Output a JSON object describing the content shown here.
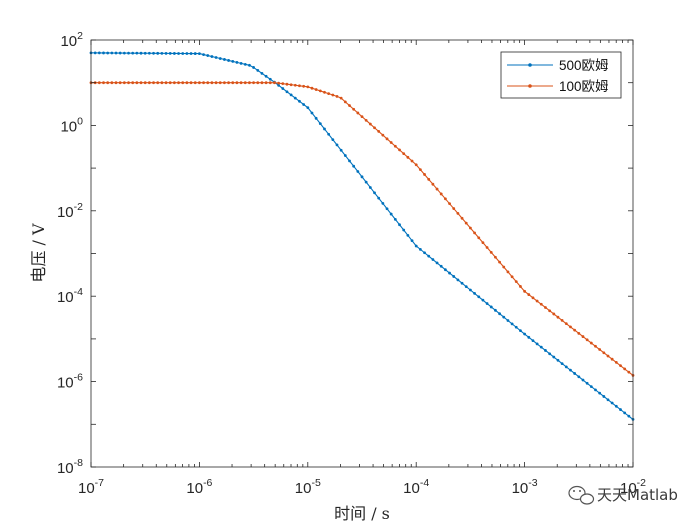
{
  "chart_data": {
    "type": "line",
    "xscale": "log",
    "yscale": "log",
    "xlabel": "时间 / s",
    "ylabel": "电压 / V",
    "xlim": [
      1e-07,
      0.01
    ],
    "ylim": [
      1e-08,
      100
    ],
    "x_ticks": [
      {
        "base": "10",
        "exp": "-7"
      },
      {
        "base": "10",
        "exp": "-6"
      },
      {
        "base": "10",
        "exp": "-5"
      },
      {
        "base": "10",
        "exp": "-4"
      },
      {
        "base": "10",
        "exp": "-3"
      },
      {
        "base": "10",
        "exp": "-2"
      }
    ],
    "y_ticks": [
      {
        "base": "10",
        "exp": "-8"
      },
      {
        "base": "10",
        "exp": "-6"
      },
      {
        "base": "10",
        "exp": "-4"
      },
      {
        "base": "10",
        "exp": "-2"
      },
      {
        "base": "10",
        "exp": "0"
      },
      {
        "base": "10",
        "exp": "2"
      }
    ],
    "grid": false,
    "box": true,
    "legend_position": "top-right",
    "marker": "dot",
    "series": [
      {
        "name": "500欧姆",
        "color": "#0072BD",
        "x": [
          1e-07,
          1e-06,
          3e-06,
          5e-06,
          1e-05,
          0.0001,
          0.001,
          0.01
        ],
        "y": [
          50,
          48,
          25,
          10,
          2.6,
          0.0015,
          1.3e-05,
          1.3e-07
        ]
      },
      {
        "name": "100欧姆",
        "color": "#D95319",
        "x": [
          1e-07,
          5e-06,
          1e-05,
          2e-05,
          0.0001,
          0.001,
          0.01
        ],
        "y": [
          10,
          10,
          8,
          4.5,
          0.12,
          0.00013,
          1.4e-06
        ]
      }
    ]
  },
  "watermark": {
    "text": "天天Matlab",
    "icon": "wechat-icon"
  }
}
